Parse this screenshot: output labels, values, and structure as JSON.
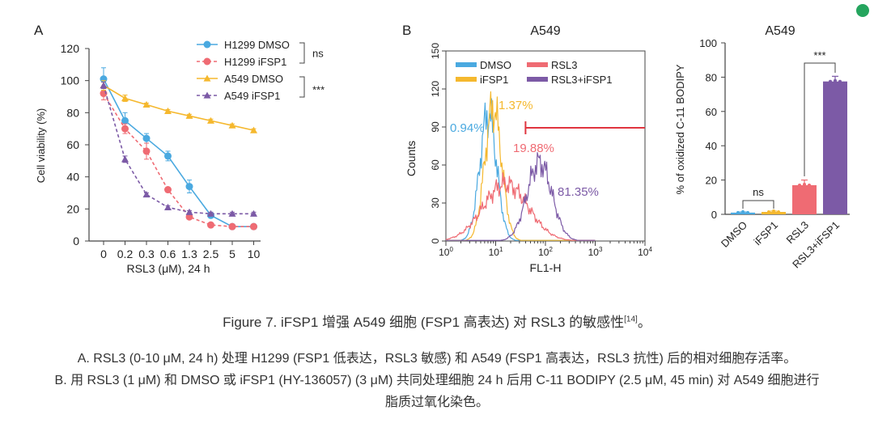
{
  "chart_data": [
    {
      "panel": "A",
      "type": "line",
      "xlabel": "RSL3 (μM), 24 h",
      "ylabel": "Cell viability (%)",
      "ylim": [
        0,
        120
      ],
      "yticks": [
        0,
        20,
        40,
        60,
        80,
        100,
        120
      ],
      "categories": [
        "0",
        "0.2",
        "0.3",
        "0.6",
        "1.3",
        "2.5",
        "5",
        "10"
      ],
      "series": [
        {
          "name": "H1299 DMSO",
          "color": "#4aa9e0",
          "marker": "circle",
          "dashed": false,
          "values": [
            101,
            75,
            64,
            53,
            34,
            16,
            9,
            9
          ],
          "errors": [
            7,
            5,
            3,
            3,
            4,
            1,
            1,
            1
          ]
        },
        {
          "name": "H1299 iFSP1",
          "color": "#ef6b73",
          "marker": "circle",
          "dashed": true,
          "values": [
            92,
            70,
            56,
            32,
            15,
            10,
            9,
            9
          ],
          "errors": [
            4,
            3,
            5,
            1,
            1,
            1,
            1,
            1
          ]
        },
        {
          "name": "A549 DMSO",
          "color": "#f5b82e",
          "marker": "triangle",
          "dashed": false,
          "values": [
            97,
            89,
            85,
            81,
            78,
            75,
            72,
            69
          ],
          "errors": [
            3,
            2,
            1,
            1,
            1,
            1,
            1,
            1
          ]
        },
        {
          "name": "A549 iFSP1",
          "color": "#7c5aa6",
          "marker": "triangle",
          "dashed": true,
          "values": [
            97,
            51,
            29,
            21,
            18,
            17,
            17,
            17
          ],
          "errors": [
            2,
            2,
            1,
            1,
            1,
            1,
            1,
            1
          ]
        }
      ],
      "significance": [
        {
          "groups": "H1299",
          "label": "ns"
        },
        {
          "groups": "A549",
          "label": "***"
        }
      ]
    },
    {
      "panel": "B",
      "type": "area",
      "title": "A549",
      "xlabel": "FL1-H",
      "ylabel": "Counts",
      "ylim": [
        0,
        150
      ],
      "yticks": [
        0,
        30,
        60,
        90,
        120,
        150
      ],
      "x_log_range": [
        0,
        4
      ],
      "series": [
        {
          "name": "DMSO",
          "color": "#4aa9e0",
          "peak_decade": 0.85,
          "peak_count": 100,
          "width": 0.17,
          "percent": "0.94%"
        },
        {
          "name": "iFSP1",
          "color": "#f5b82e",
          "peak_decade": 0.95,
          "peak_count": 105,
          "width": 0.17,
          "percent": "1.37%"
        },
        {
          "name": "RSL3",
          "color": "#ef6b73",
          "peak_decade": 1.2,
          "peak_count": 45,
          "width": 0.45,
          "percent": "19.88%"
        },
        {
          "name": "RSL3+iFSP1",
          "color": "#7c5aa6",
          "peak_decade": 1.88,
          "peak_count": 62,
          "width": 0.25,
          "percent": "81.35%"
        }
      ],
      "gate_label_start_decade": 1.6
    },
    {
      "panel": "B-bar",
      "type": "bar",
      "title": "A549",
      "ylabel": "% of oxidized C-11 BODIPY",
      "ylim": [
        0,
        100
      ],
      "yticks": [
        0,
        20,
        40,
        60,
        80,
        100
      ],
      "categories": [
        "DMSO",
        "iFSP1",
        "RSL3",
        "RSL3+iFSP1"
      ],
      "values": [
        1,
        1.4,
        17,
        77.5
      ],
      "errors": [
        0.4,
        0.5,
        3,
        3
      ],
      "colors": [
        "#4aa9e0",
        "#f5b82e",
        "#ef6b73",
        "#7c5aa6"
      ],
      "significance": [
        {
          "between": [
            "DMSO",
            "iFSP1"
          ],
          "label": "ns"
        },
        {
          "between": [
            "RSL3",
            "RSL3+iFSP1"
          ],
          "label": "***"
        }
      ]
    }
  ],
  "panel_labels": {
    "a": "A",
    "b": "B"
  },
  "caption": {
    "title_prefix": "Figure 7.",
    "title_text": " iFSP1 增强 A549 细胞 (FSP1 高表达) 对 RSL3 的敏感性",
    "title_ref": "[14]",
    "title_end": "。",
    "line_a": "A. RSL3 (0-10 μM, 24 h) 处理 H1299 (FSP1 低表达，RSL3 敏感) 和 A549 (FSP1 高表达，RSL3 抗性) 后的相对细胞存活率。",
    "line_b1": "B. 用 RSL3 (1 μM) 和 DMSO 或 iFSP1 (HY-136057) (3 μM) 共同处理细胞 24 h 后用 C-11 BODIPY (2.5 μM, 45 min) 对 A549 细胞进行",
    "line_b2": "脂质过氧化染色。"
  }
}
